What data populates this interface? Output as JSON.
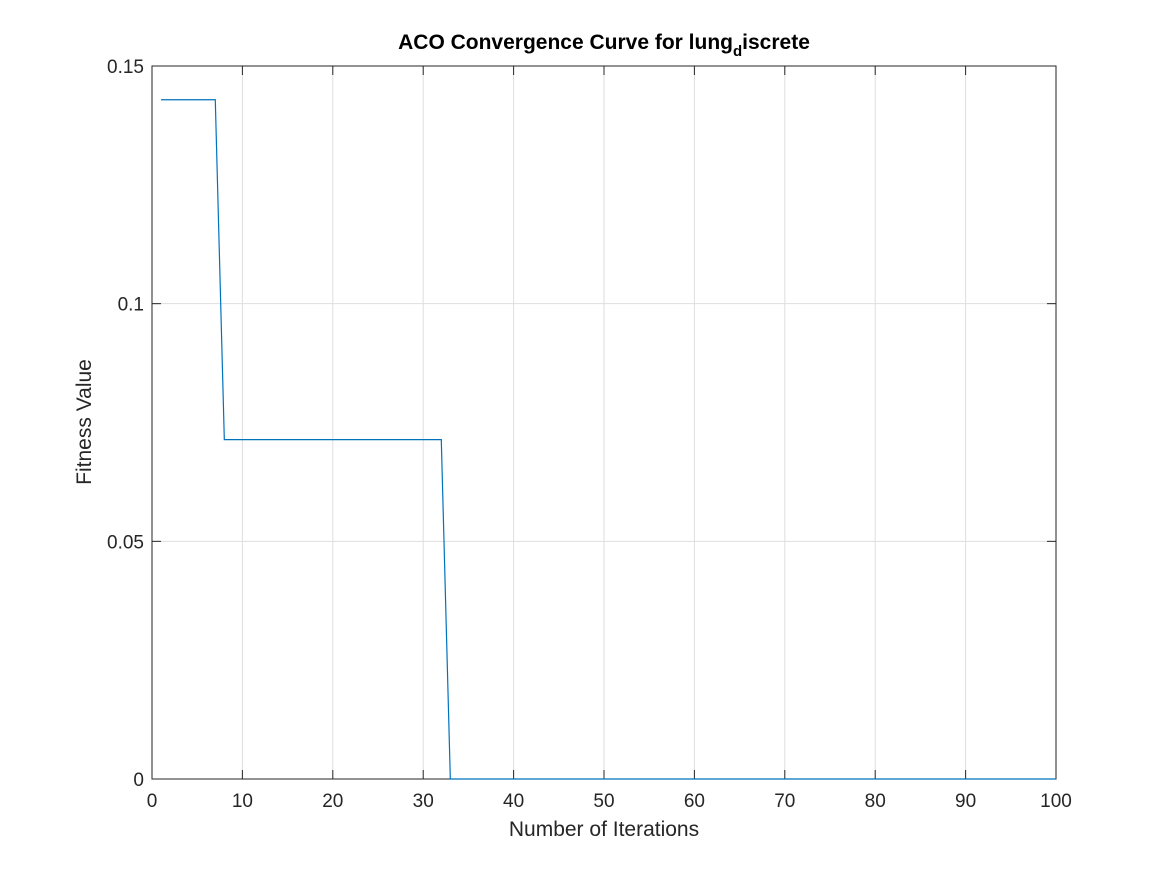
{
  "chart_data": {
    "type": "line",
    "title": {
      "main": "ACO Convergence Curve for lung",
      "subscript": "d",
      "rest": "iscrete"
    },
    "xlabel": "Number of Iterations",
    "ylabel": "Fitness Value",
    "xlim": [
      0,
      100
    ],
    "ylim": [
      0,
      0.15
    ],
    "xticks": [
      0,
      10,
      20,
      30,
      40,
      50,
      60,
      70,
      80,
      90,
      100
    ],
    "xtick_labels": [
      "0",
      "10",
      "20",
      "30",
      "40",
      "50",
      "60",
      "70",
      "80",
      "90",
      "100"
    ],
    "yticks": [
      0,
      0.05,
      0.1,
      0.15
    ],
    "ytick_labels": [
      "0",
      "0.05",
      "0.1",
      "0.15"
    ],
    "grid": true,
    "series": [
      {
        "color": "#0072BD",
        "x": [
          1,
          7,
          8,
          32,
          33,
          100
        ],
        "y": [
          0.1429,
          0.1429,
          0.0714,
          0.0714,
          0,
          0
        ]
      }
    ]
  }
}
